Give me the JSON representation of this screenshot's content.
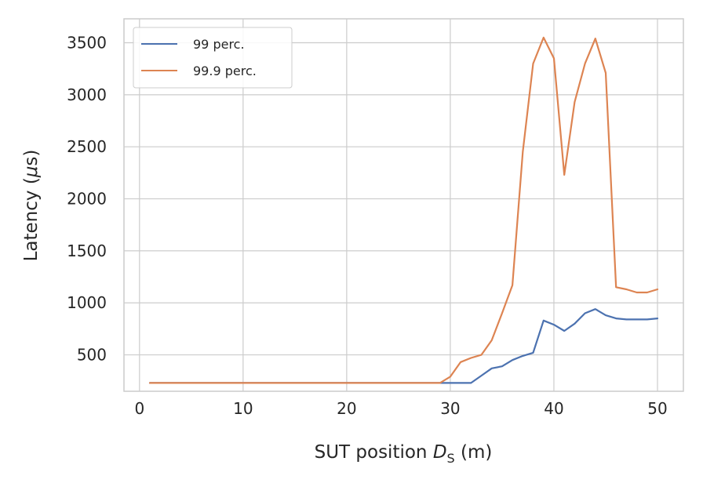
{
  "chart_data": {
    "type": "line",
    "xlabel_prefix": "SUT position ",
    "xlabel_var": "D",
    "xlabel_sub": "S",
    "xlabel_suffix": " (m)",
    "ylabel_prefix": "Latency (",
    "ylabel_mu": "μ",
    "ylabel_suffix": "s)",
    "xlim": [
      -1.5,
      52.5
    ],
    "ylim": [
      150,
      3730
    ],
    "xticks": [
      0,
      10,
      20,
      30,
      40,
      50
    ],
    "yticks": [
      500,
      1000,
      1500,
      2000,
      2500,
      3000,
      3500
    ],
    "grid": true,
    "legend_position": "top-left",
    "x": [
      1,
      2,
      3,
      4,
      5,
      6,
      7,
      8,
      9,
      10,
      11,
      12,
      13,
      14,
      15,
      16,
      17,
      18,
      19,
      20,
      21,
      22,
      23,
      24,
      25,
      26,
      27,
      28,
      29,
      30,
      31,
      32,
      33,
      34,
      35,
      36,
      37,
      38,
      39,
      40,
      41,
      42,
      43,
      44,
      45,
      46,
      47,
      48,
      49,
      50
    ],
    "series": [
      {
        "name": "99 perc.",
        "color": "#4c72b0",
        "values": [
          230,
          230,
          230,
          230,
          230,
          230,
          230,
          230,
          230,
          230,
          230,
          230,
          230,
          230,
          230,
          230,
          230,
          230,
          230,
          230,
          230,
          230,
          230,
          230,
          230,
          230,
          230,
          230,
          230,
          230,
          230,
          230,
          300,
          370,
          390,
          450,
          490,
          520,
          830,
          790,
          730,
          800,
          900,
          940,
          880,
          850,
          840,
          840,
          840,
          850
        ]
      },
      {
        "name": "99.9 perc.",
        "color": "#dd8452",
        "values": [
          230,
          230,
          230,
          230,
          230,
          230,
          230,
          230,
          230,
          230,
          230,
          230,
          230,
          230,
          230,
          230,
          230,
          230,
          230,
          230,
          230,
          230,
          230,
          230,
          230,
          230,
          230,
          230,
          230,
          290,
          430,
          470,
          500,
          640,
          900,
          1170,
          2450,
          3300,
          3550,
          3350,
          2230,
          2930,
          3300,
          3540,
          3210,
          1150,
          1130,
          1100,
          1100,
          1130
        ]
      }
    ]
  }
}
